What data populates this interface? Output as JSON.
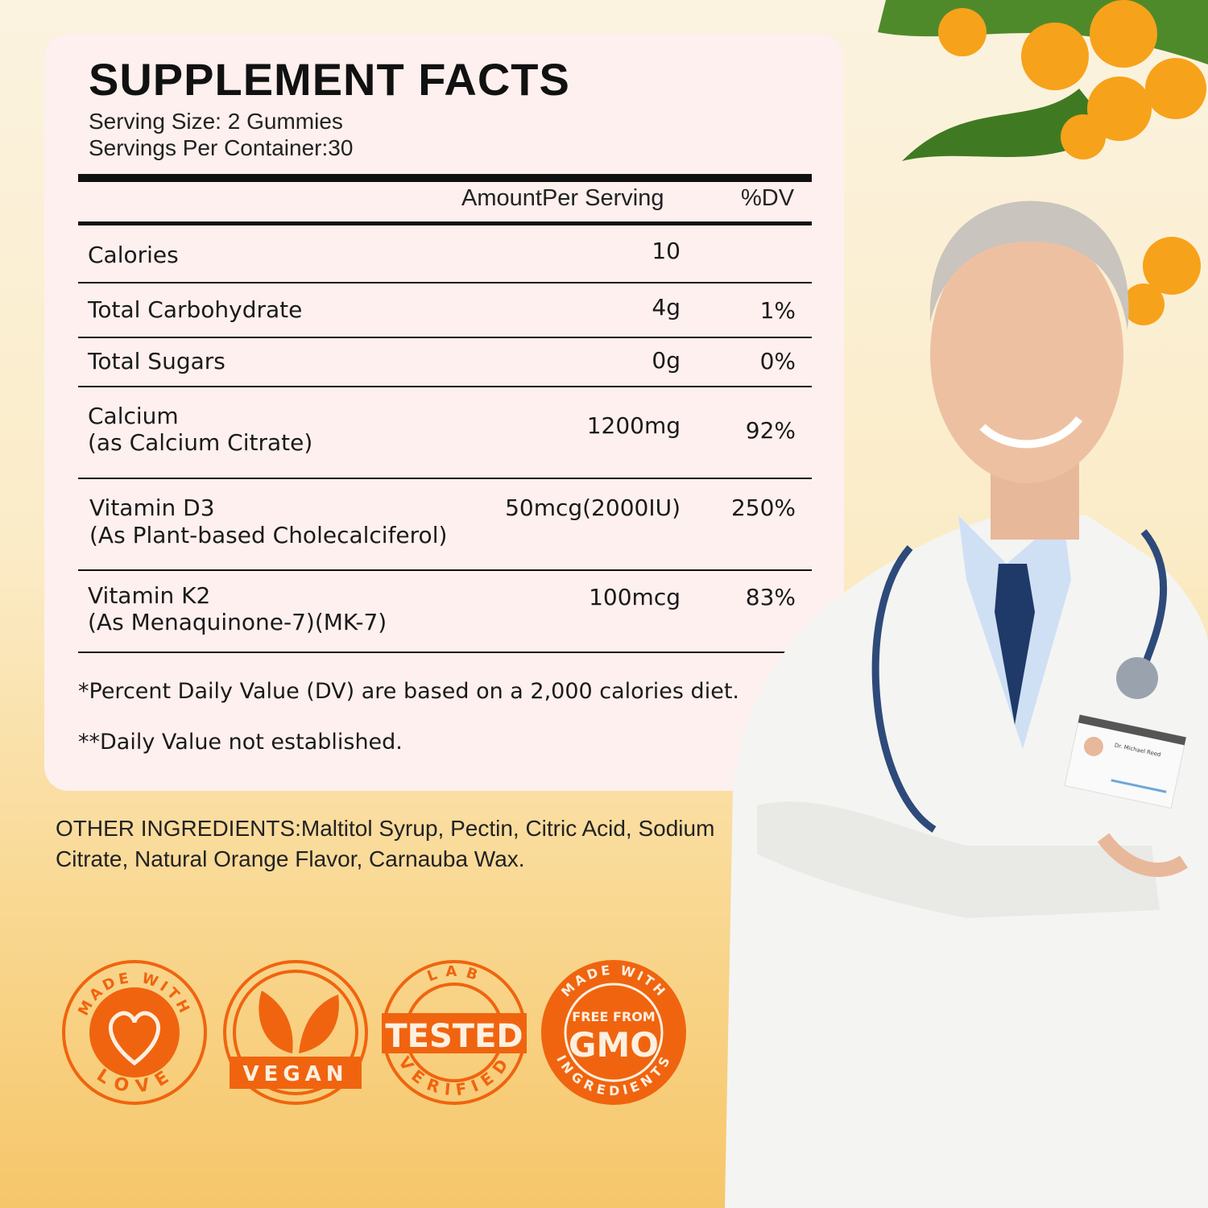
{
  "facts": {
    "title": "SUPPLEMENT FACTS",
    "serving_size": "Serving Size: 2 Gummies",
    "servings_per_container": "Servings Per Container:30",
    "col_amount": "AmountPer Serving",
    "col_dv": "%DV",
    "rows": [
      {
        "name": "Calories",
        "sub": "",
        "amount": "10",
        "dv": ""
      },
      {
        "name": "Total Carbohydrate",
        "sub": "",
        "amount": "4g",
        "dv": "1%"
      },
      {
        "name": "Total Sugars",
        "sub": "",
        "amount": "0g",
        "dv": "0%"
      },
      {
        "name": "Calcium",
        "sub": "(as Calcium Citrate)",
        "amount": "1200mg",
        "dv": "92%"
      },
      {
        "name": "Vitamin D3",
        "sub": "(As Plant-based Cholecalciferol)",
        "amount": "50mcg(2000IU)",
        "dv": "250%"
      },
      {
        "name": "Vitamin K2",
        "sub": "(As Menaquinone-7)(MK-7)",
        "amount": "100mcg",
        "dv": "83%"
      }
    ],
    "note1": "*Percent Daily Value (DV) are based on a 2,000 calories diet.",
    "note2": "**Daily Value not established."
  },
  "other_ingredients": "OTHER INGREDIENTS:Maltitol Syrup, Pectin, Citric Acid, Sodium Citrate, Natural Orange Flavor, Carnauba Wax.",
  "badges": [
    {
      "top": "MADE WITH",
      "bottom": "LOVE",
      "icon": "heart-icon"
    },
    {
      "top": "",
      "bottom": "VEGAN",
      "icon": "leaf-icon"
    },
    {
      "top": "LAB",
      "center": "TESTED",
      "bottom": "VERIFIED",
      "icon": "stamp-icon"
    },
    {
      "top": "MADE WITH",
      "center_small": "FREE FROM",
      "center": "GMO",
      "bottom": "INGREDIENTS",
      "icon": "stamp-icon"
    }
  ],
  "id_badge_name": "Dr. Michael Reed",
  "colors": {
    "accent": "#f0640f",
    "card": "#fdf0ee"
  }
}
